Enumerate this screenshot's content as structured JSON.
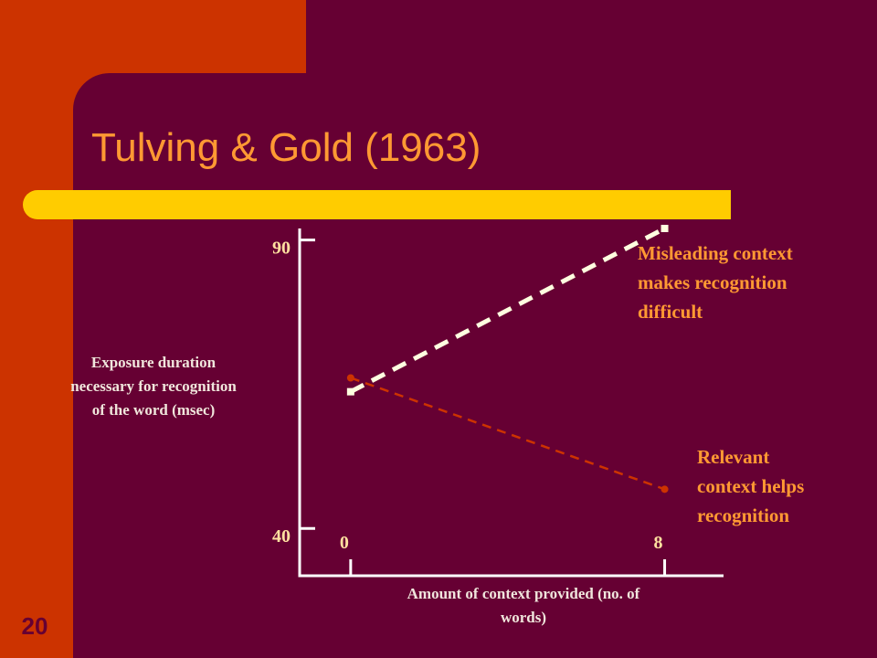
{
  "slide": {
    "title": "Tulving & Gold (1963)",
    "number": "20"
  },
  "chart_data": {
    "type": "line",
    "y_label": [
      "Exposure duration",
      "necessary for recognition",
      "of the word (msec)"
    ],
    "x_label": [
      "Amount of context provided (no. of",
      "words)"
    ],
    "x": [
      0,
      8
    ],
    "xlim": [
      -1.3,
      9.5
    ],
    "xticks": [
      0,
      8
    ],
    "ylim": [
      31.8,
      92
    ],
    "yticks": [
      90,
      40
    ],
    "series": [
      {
        "name": "Misleading",
        "color": "#FFFFE0",
        "dashed": true,
        "marker": "square",
        "values": [
          63.7,
          92
        ]
      },
      {
        "name": "Relevant",
        "color": "#CC3300",
        "dashed": true,
        "marker": "circle",
        "values": [
          66.1,
          46.8
        ]
      }
    ],
    "annotations": [
      {
        "lines": [
          "Misleading context",
          "makes recognition",
          "difficult"
        ]
      },
      {
        "lines": [
          "Relevant",
          "context helps",
          "recognition"
        ]
      }
    ]
  }
}
